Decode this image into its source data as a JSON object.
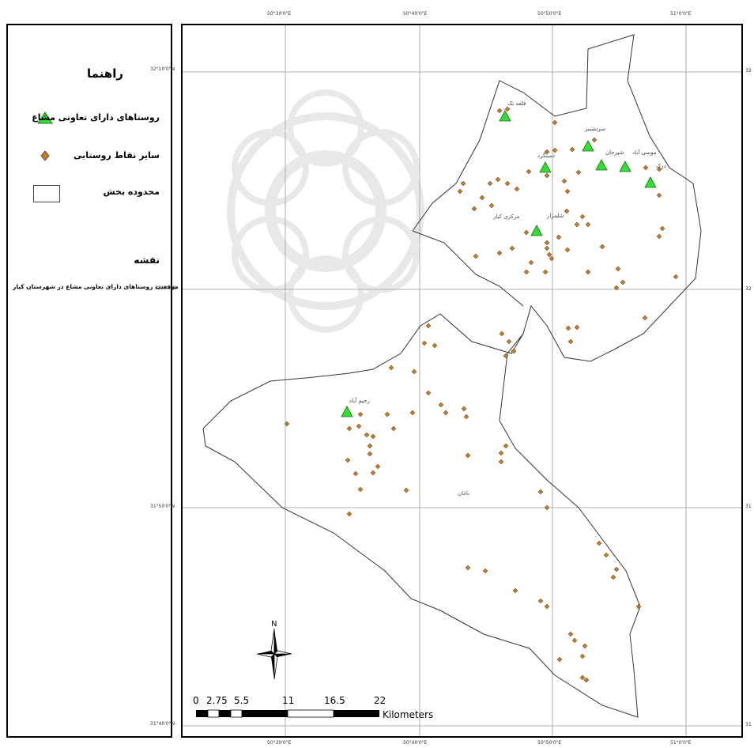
{
  "legend": {
    "title": "راهنما",
    "items": [
      {
        "label": "روستاهای دارای تعاونی مشاع",
        "symbol": "green-triangle"
      },
      {
        "label": "سایر نقاط روستایی",
        "symbol": "brown-diamond"
      },
      {
        "label": "محدوده بخش",
        "symbol": "white-rectangle"
      }
    ],
    "map_label": "نقشه",
    "map_title": "موقعیت روستاهای دارای تعاونی مشاع در شهرستان کیار"
  },
  "colors": {
    "cooperative_village": "#33dd33",
    "other_village": "#c27a2c",
    "boundary": "#333333",
    "grid": "#999999"
  },
  "grid": {
    "top_ticks": [
      "50°30'0\"E",
      "50°40'0\"E",
      "50°50'0\"E",
      "51°0'0\"E"
    ],
    "bottom_ticks": [
      "50°30'0\"E",
      "50°40'0\"E",
      "50°50'0\"E",
      "51°0'0\"E"
    ],
    "left_ticks": [
      "32°10'0\"N",
      "32°0'0\"N",
      "31°50'0\"N",
      "31°40'0\"N"
    ],
    "right_ticks": [
      "32",
      "32",
      "31",
      "31"
    ]
  },
  "districts": [
    {
      "name": "مرکزی کیار"
    },
    {
      "name": "ناغان"
    }
  ],
  "cooperative_villages": [
    {
      "name": "قلعه تک"
    },
    {
      "name": "سرتشنیز"
    },
    {
      "name": "شلمزار"
    },
    {
      "name": "دستگرد"
    },
    {
      "name": "شیرجان"
    },
    {
      "name": "موسی آباد"
    },
    {
      "name": "دزک"
    },
    {
      "name": "رحیم آباد"
    }
  ],
  "scale_bar": {
    "labels": [
      "0",
      "2.75",
      "5.5",
      "11",
      "16.5",
      "22"
    ],
    "unit": "Kilometers"
  },
  "north_arrow": {
    "label": "N"
  }
}
